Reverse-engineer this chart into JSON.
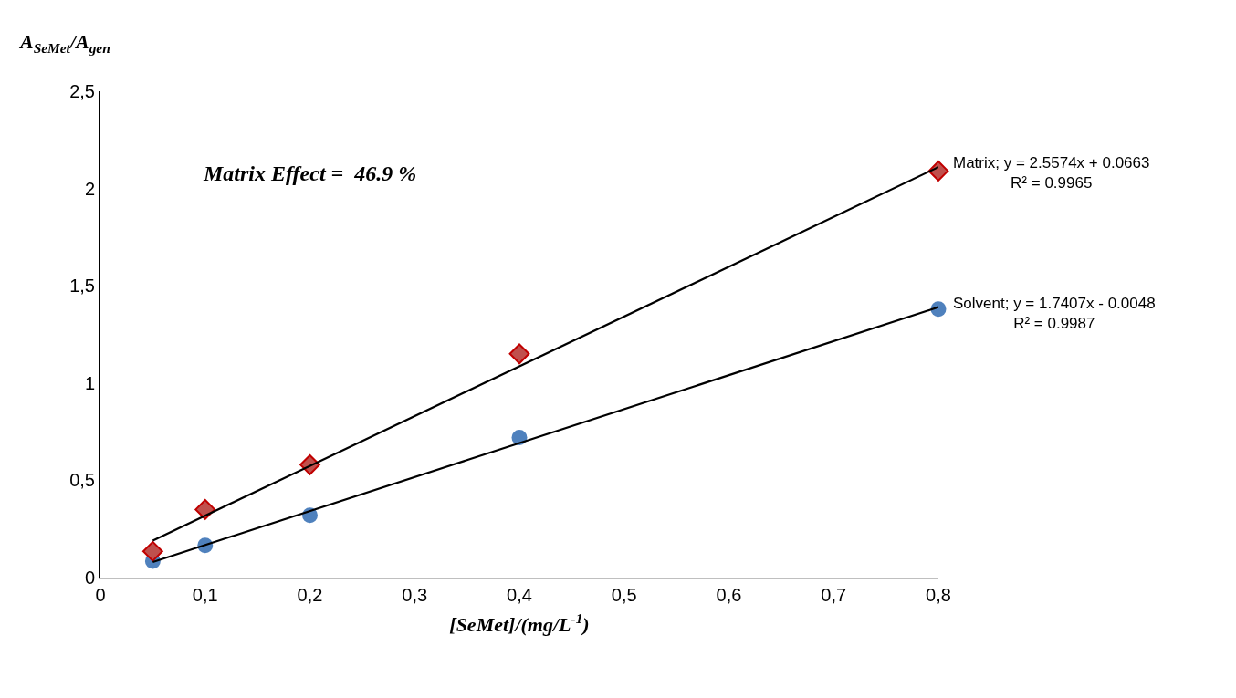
{
  "chart_data": {
    "type": "scatter",
    "xlabel": "[SeMet]/(mg/L$^{-1}$)",
    "ylabel": "A$_{SeMet}$/A$_{gen}$",
    "xlim": [
      0,
      0.8
    ],
    "xticks": [
      {
        "value": 0,
        "label": "0"
      },
      {
        "value": 0.1,
        "label": "0,1"
      },
      {
        "value": 0.2,
        "label": "0,2"
      },
      {
        "value": 0.3,
        "label": "0,3"
      },
      {
        "value": 0.4,
        "label": "0,4"
      },
      {
        "value": 0.5,
        "label": "0,5"
      },
      {
        "value": 0.6,
        "label": "0,6"
      },
      {
        "value": 0.7,
        "label": "0,7"
      },
      {
        "value": 0.8,
        "label": "0,8"
      }
    ],
    "ylim": [
      0,
      2.5
    ],
    "yticks": [
      {
        "value": 0,
        "label": "0"
      },
      {
        "value": 0.5,
        "label": "0,5"
      },
      {
        "value": 1,
        "label": "1"
      },
      {
        "value": 1.5,
        "label": "1,5"
      },
      {
        "value": 2,
        "label": "2"
      },
      {
        "value": 2.5,
        "label": "2,5"
      }
    ],
    "series": [
      {
        "marker": "circle",
        "color": "#4f81bd",
        "x": [
          0.05,
          0.1,
          0.2,
          0.4,
          0.8
        ],
        "values": [
          0.085,
          0.165,
          0.32,
          0.72,
          1.38
        ]
      },
      {
        "marker": "diamond",
        "color": "#c0504d",
        "x": [
          0.05,
          0.1,
          0.2,
          0.4,
          0.8
        ],
        "values": [
          0.135,
          0.35,
          0.58,
          1.15,
          2.09
        ]
      },
      {
        "type": "line",
        "marker": "none",
        "line_style": "solid",
        "color": "#000000",
        "x": [
          0.05,
          0.8
        ],
        "values": [
          0.19,
          2.11
        ]
      },
      {
        "type": "line",
        "marker": "none",
        "line_style": "solid",
        "color": "#000000",
        "x": [
          0.05,
          0.8
        ],
        "values": [
          0.08,
          1.39
        ]
      }
    ],
    "annotations": [
      "Matrix Effect =  46.9 %",
      {
        "text": "Matrix; y = 2.5574x + 0.0663\nR² = 0.9965",
        "x": 0.8,
        "y": 2.11
      },
      {
        "text": "Solvent; y = 1.7407x - 0.0048\nR² = 0.9987",
        "x": 0.8,
        "y": 1.39
      }
    ]
  }
}
